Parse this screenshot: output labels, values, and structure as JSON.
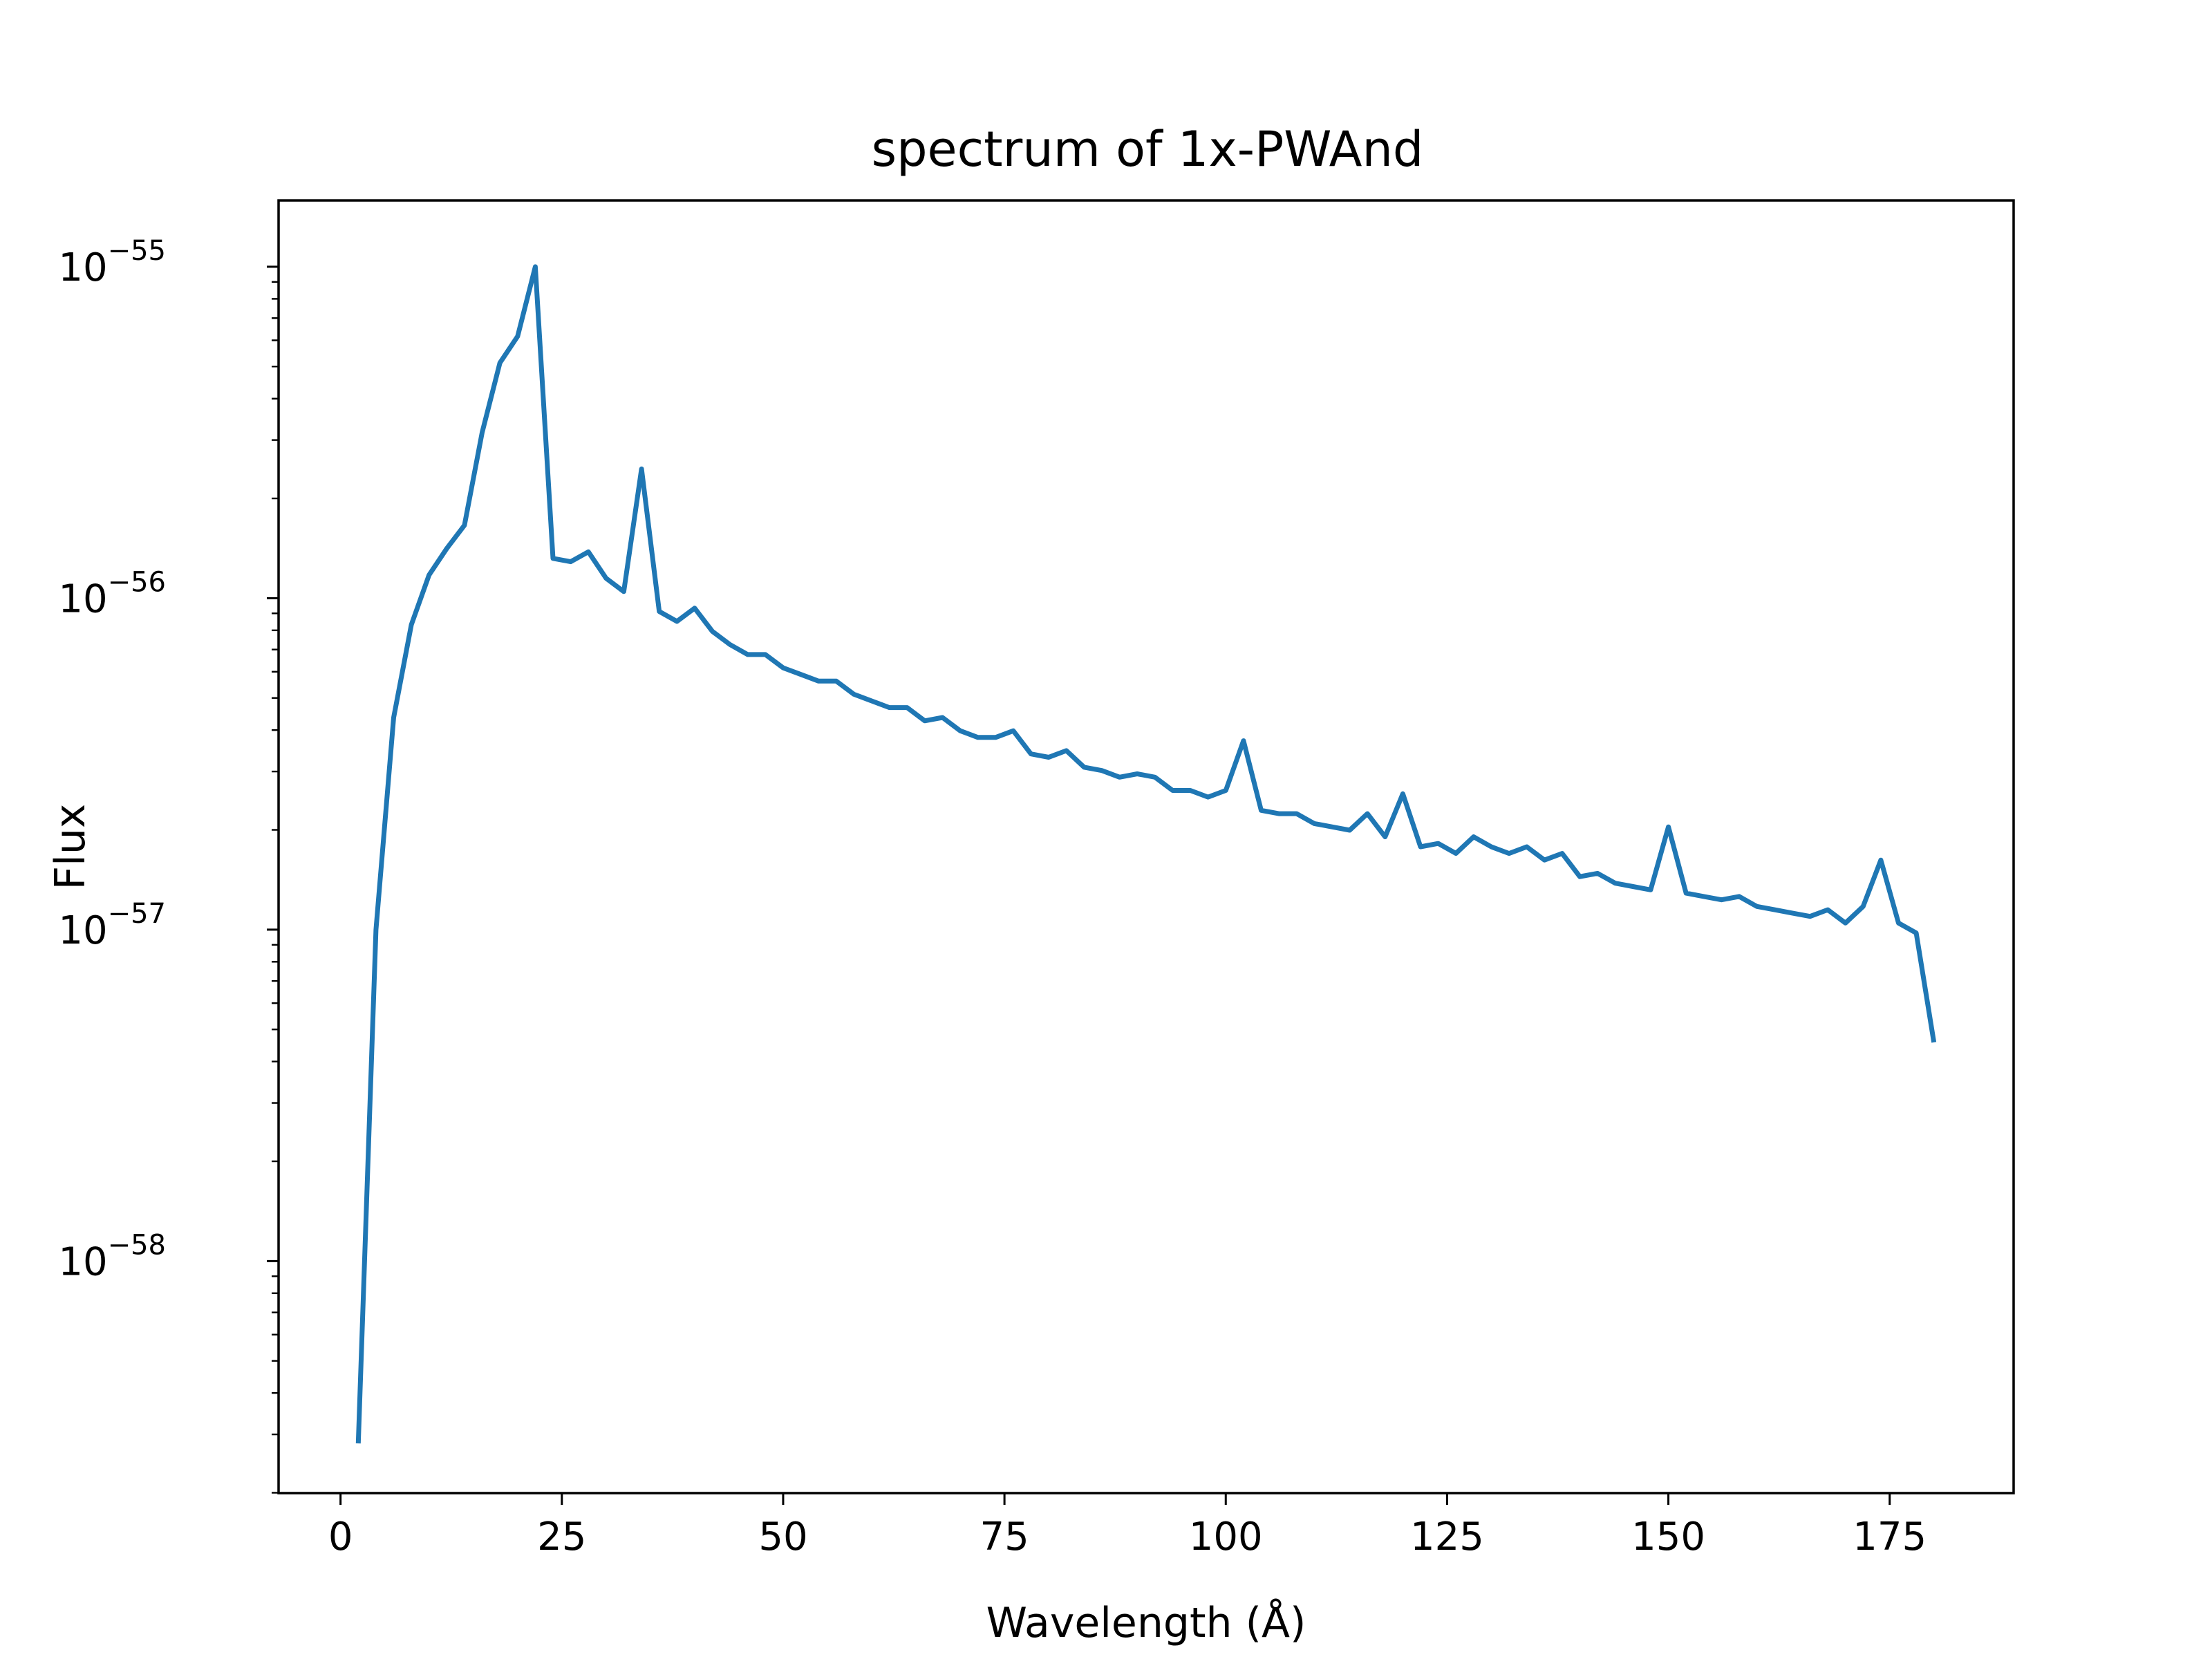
{
  "chart_data": {
    "type": "line",
    "title": "spectrum of 1x-PWAnd",
    "xlabel": "Wavelength (Å)",
    "ylabel": "Flux",
    "x_ticks": [
      "0",
      "25",
      "50",
      "75",
      "100",
      "125",
      "150",
      "175"
    ],
    "y_ticks": [
      {
        "base": "10",
        "exp": "−58",
        "value": -58
      },
      {
        "base": "10",
        "exp": "−57",
        "value": -57
      },
      {
        "base": "10",
        "exp": "−56",
        "value": -56
      },
      {
        "base": "10",
        "exp": "−55",
        "value": -55
      }
    ],
    "y_scale": "log",
    "xlim": [
      -7,
      189
    ],
    "ylim_log10": [
      -58.7,
      -54.8
    ],
    "grid": false,
    "line_color": "#1f77b4",
    "series": [
      {
        "x": [
          2,
          4,
          6,
          8,
          10,
          12,
          14,
          16,
          18,
          20,
          22,
          24,
          26,
          28,
          30,
          32,
          34,
          36,
          38,
          40,
          42,
          44,
          46,
          48,
          50,
          52,
          54,
          56,
          58,
          60,
          62,
          64,
          66,
          68,
          70,
          72,
          74,
          76,
          78,
          80,
          82,
          84,
          86,
          88,
          90,
          92,
          94,
          96,
          98,
          100,
          102,
          104,
          106,
          108,
          110,
          112,
          114,
          116,
          118,
          120,
          122,
          124,
          126,
          128,
          130,
          132,
          134,
          136,
          138,
          140,
          142,
          144,
          146,
          148,
          150,
          152,
          154,
          156,
          158,
          160,
          162,
          164,
          166,
          168,
          170,
          172,
          174,
          176,
          178,
          180
        ],
        "log10_flux": [
          -58.55,
          -57.0,
          -56.36,
          -56.08,
          -55.93,
          -55.85,
          -55.78,
          -55.5,
          -55.29,
          -55.21,
          -55.0,
          -55.88,
          -55.89,
          -55.86,
          -55.94,
          -55.98,
          -55.61,
          -56.04,
          -56.07,
          -56.03,
          -56.1,
          -56.14,
          -56.17,
          -56.17,
          -56.21,
          -56.23,
          -56.25,
          -56.25,
          -56.29,
          -56.31,
          -56.33,
          -56.33,
          -56.37,
          -56.36,
          -56.4,
          -56.42,
          -56.42,
          -56.4,
          -56.47,
          -56.48,
          -56.46,
          -56.51,
          -56.52,
          -56.54,
          -56.53,
          -56.54,
          -56.58,
          -56.58,
          -56.6,
          -56.58,
          -56.43,
          -56.64,
          -56.65,
          -56.65,
          -56.68,
          -56.69,
          -56.7,
          -56.65,
          -56.72,
          -56.59,
          -56.75,
          -56.74,
          -56.77,
          -56.72,
          -56.75,
          -56.77,
          -56.75,
          -56.79,
          -56.77,
          -56.84,
          -56.83,
          -56.86,
          -56.87,
          -56.88,
          -56.69,
          -56.89,
          -56.9,
          -56.91,
          -56.9,
          -56.93,
          -56.94,
          -56.95,
          -56.96,
          -56.94,
          -56.98,
          -56.93,
          -56.79,
          -56.98,
          -57.01,
          -57.34
        ]
      }
    ]
  }
}
